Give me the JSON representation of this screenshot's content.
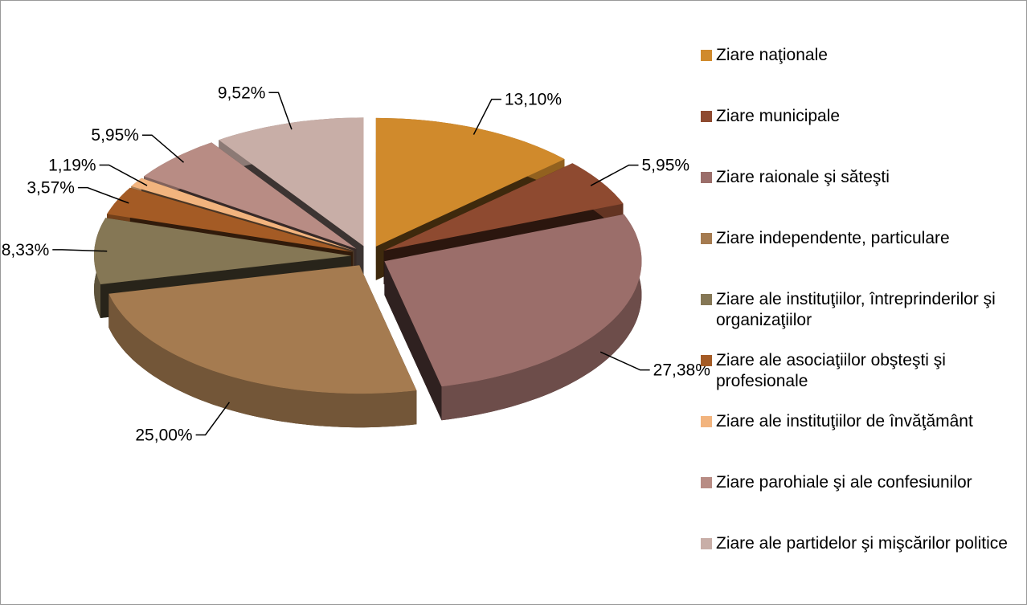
{
  "chart_data": {
    "type": "pie",
    "categories": [
      "Ziare naţionale",
      "Ziare municipale",
      "Ziare raionale şi săteşti",
      "Ziare independente, particulare",
      "Ziare ale instituţiilor, întreprinderilor şi organizaţiilor",
      "Ziare ale asociaţiilor obşteşti şi profesionale",
      "Ziare ale instituţiilor de învăţământ",
      "Ziare parohiale şi ale confesiunilor",
      "Ziare ale partidelor şi mişcărilor politice"
    ],
    "values": [
      13.1,
      5.95,
      27.38,
      25.0,
      8.33,
      3.57,
      1.19,
      5.95,
      9.52
    ],
    "value_labels": [
      "13,10%",
      "5,95%",
      "27,38%",
      "25,00%",
      "8,33%",
      "3,57%",
      "1,19%",
      "5,95%",
      "9,52%"
    ],
    "colors": [
      "#d08a2c",
      "#8e4a30",
      "#9b6e6a",
      "#a57b50",
      "#857755",
      "#a45b25",
      "#f2b47e",
      "#b88c84",
      "#c8aea7"
    ],
    "legend": "right"
  }
}
